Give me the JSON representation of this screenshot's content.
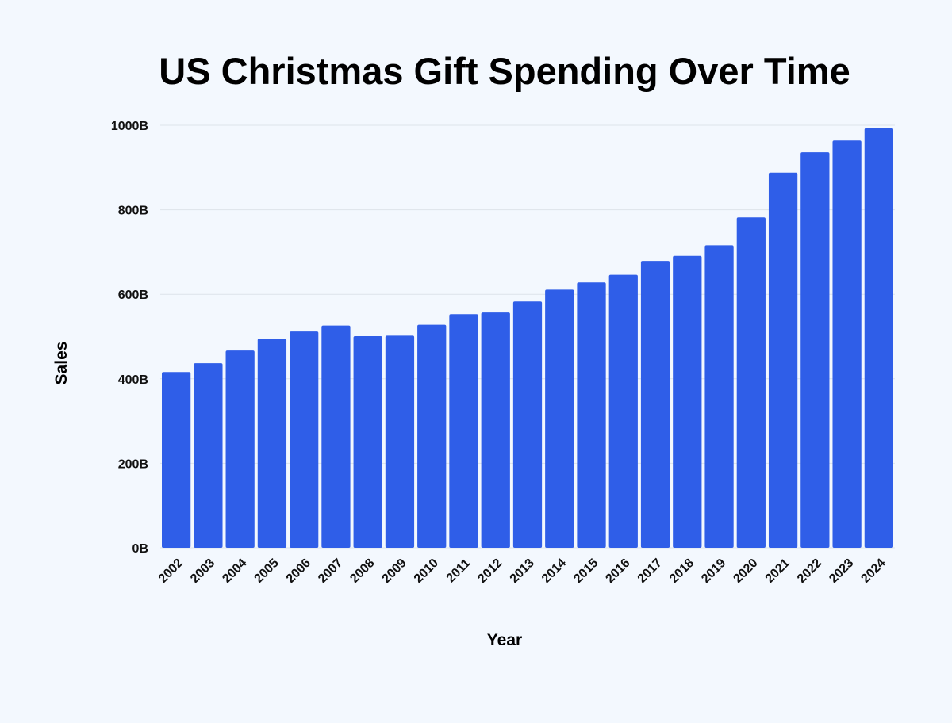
{
  "chart_data": {
    "type": "bar",
    "title": "US Christmas Gift Spending Over Time",
    "xlabel": "Year",
    "ylabel": "Sales",
    "categories": [
      "2002",
      "2003",
      "2004",
      "2005",
      "2006",
      "2007",
      "2008",
      "2009",
      "2010",
      "2011",
      "2012",
      "2013",
      "2014",
      "2015",
      "2016",
      "2017",
      "2018",
      "2019",
      "2020",
      "2021",
      "2022",
      "2023",
      "2024"
    ],
    "values": [
      416,
      437,
      467,
      495,
      512,
      526,
      501,
      502,
      528,
      553,
      557,
      583,
      611,
      628,
      646,
      679,
      691,
      716,
      782,
      888,
      936,
      964,
      993
    ],
    "ylim": [
      0,
      1000
    ],
    "yticks": [
      {
        "value": 0,
        "label": "0B"
      },
      {
        "value": 200,
        "label": "200B"
      },
      {
        "value": 400,
        "label": "400B"
      },
      {
        "value": 600,
        "label": "600B"
      },
      {
        "value": 800,
        "label": "800B"
      },
      {
        "value": 1000,
        "label": "1000B"
      }
    ],
    "grid": true,
    "bar_color": "#2f5ee8",
    "grid_color": "#dde3ea"
  }
}
